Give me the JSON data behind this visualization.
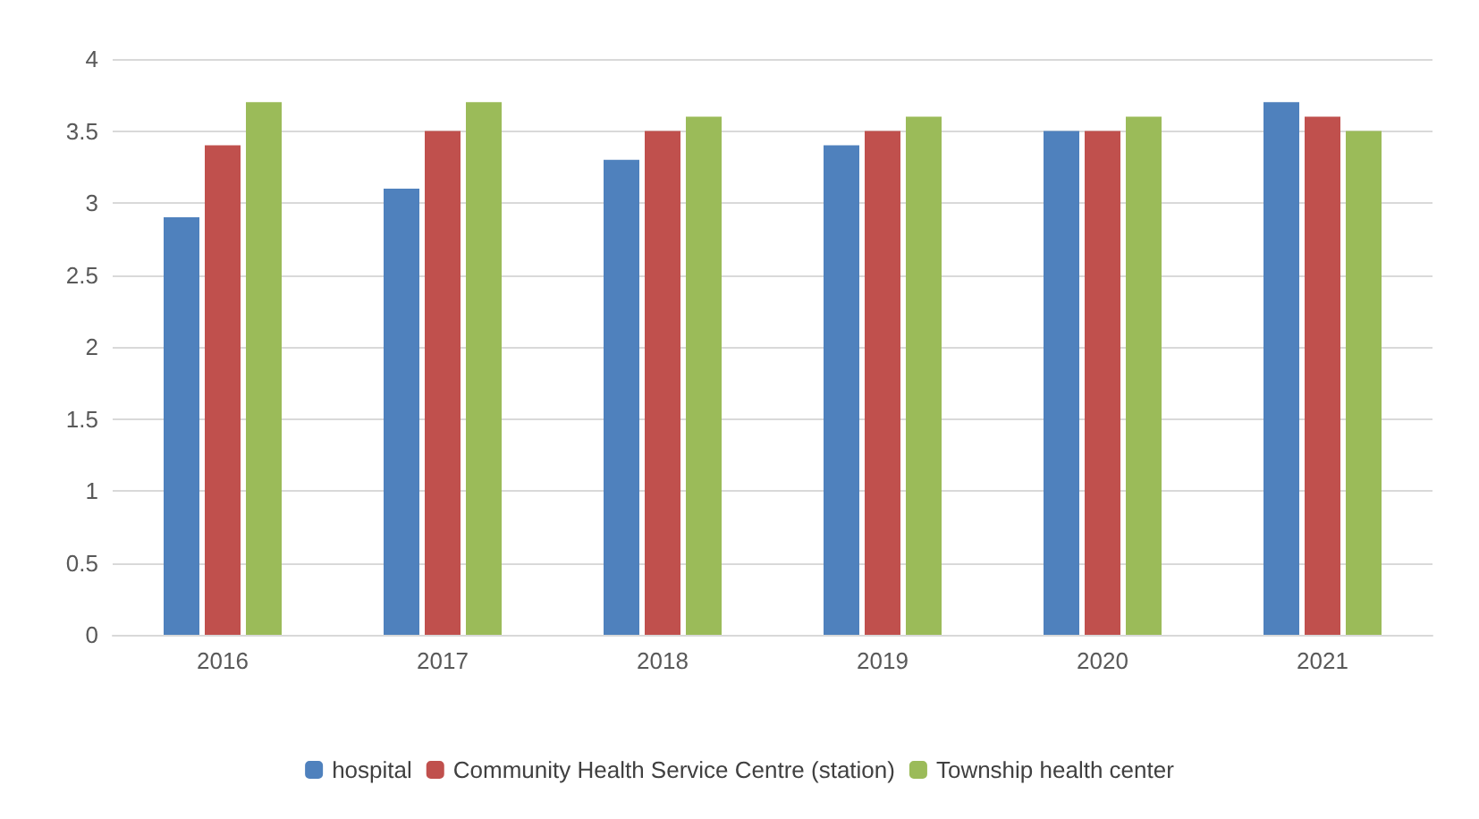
{
  "chart_data": {
    "type": "bar",
    "categories": [
      "2016",
      "2017",
      "2018",
      "2019",
      "2020",
      "2021"
    ],
    "series": [
      {
        "name": "hospital",
        "color": "#4f81bd",
        "values": [
          2.9,
          3.1,
          3.3,
          3.4,
          3.5,
          3.7
        ]
      },
      {
        "name": "Community Health Service Centre (station)",
        "color": "#c0504d",
        "values": [
          3.4,
          3.5,
          3.5,
          3.5,
          3.5,
          3.6
        ]
      },
      {
        "name": "Township health center",
        "color": "#9bbb59",
        "values": [
          3.7,
          3.7,
          3.6,
          3.6,
          3.6,
          3.5
        ]
      }
    ],
    "ylim": [
      0,
      4
    ],
    "yticks": [
      0,
      0.5,
      1,
      1.5,
      2,
      2.5,
      3,
      3.5,
      4
    ],
    "grid": "y",
    "legend": "bottom"
  }
}
